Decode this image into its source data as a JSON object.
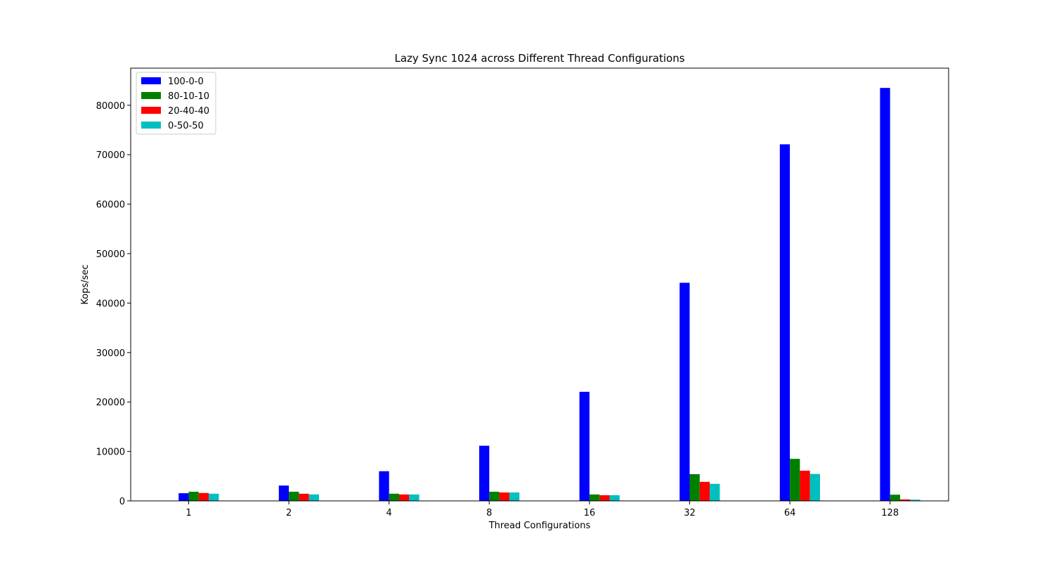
{
  "chart_data": {
    "type": "bar",
    "title": "Lazy Sync 1024 across Different Thread Configurations",
    "xlabel": "Thread Configurations",
    "ylabel": "Kops/sec",
    "categories": [
      "1",
      "2",
      "4",
      "8",
      "16",
      "32",
      "64",
      "128"
    ],
    "ylim": [
      0,
      87500
    ],
    "yticks": [
      0,
      10000,
      20000,
      30000,
      40000,
      50000,
      60000,
      70000,
      80000
    ],
    "grid": false,
    "legend_position": "top-left",
    "series": [
      {
        "name": "100-0-0",
        "color": "#0000ff",
        "values": [
          1550,
          3100,
          6000,
          11150,
          22050,
          44100,
          72100,
          83500
        ]
      },
      {
        "name": "80-10-10",
        "color": "#008000",
        "values": [
          1850,
          1850,
          1450,
          1850,
          1300,
          5400,
          8500,
          1250
        ]
      },
      {
        "name": "20-40-40",
        "color": "#ff0000",
        "values": [
          1600,
          1450,
          1300,
          1700,
          1150,
          3850,
          6100,
          300
        ]
      },
      {
        "name": "0-50-50",
        "color": "#00bfbf",
        "values": [
          1450,
          1300,
          1300,
          1700,
          1150,
          3450,
          5450,
          250
        ]
      }
    ]
  }
}
